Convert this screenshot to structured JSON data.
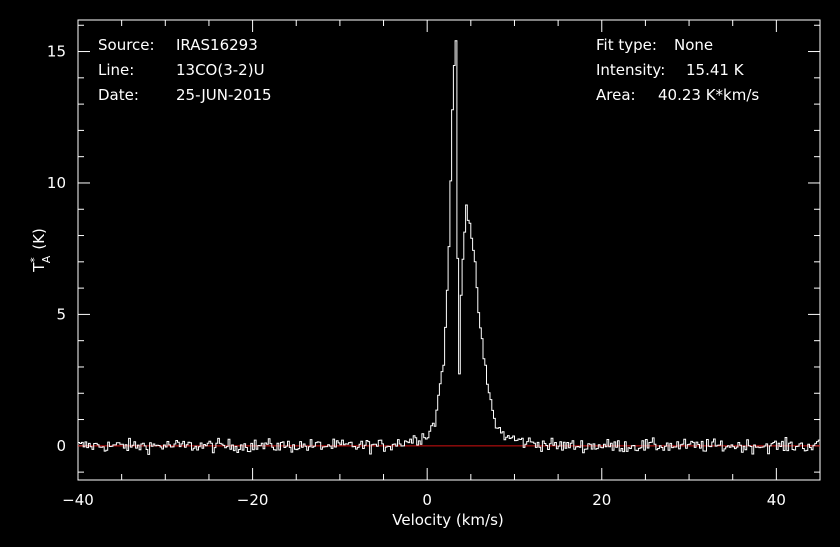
{
  "colors": {
    "background": "#000000",
    "foreground": "#ffffff",
    "baseline": "#d21010"
  },
  "header_left": {
    "source_label": "Source:",
    "source_value": "IRAS16293",
    "line_label": "Line:",
    "line_value": "13CO(3-2)U",
    "date_label": "Date:",
    "date_value": "25-JUN-2015"
  },
  "header_right": {
    "fit_label": "Fit type:",
    "fit_value": "None",
    "intensity_label": "Intensity:",
    "intensity_value": "15.41 K",
    "area_label": "Area:",
    "area_value": "40.23 K*km/s"
  },
  "chart_data": {
    "type": "line",
    "xlabel": "Velocity (km/s)",
    "ylabel": "T",
    "ylabel_sup": "*",
    "ylabel_sub": "A",
    "ylabel_unit": "(K)",
    "xlim": [
      -40,
      45
    ],
    "ylim": [
      -1.3,
      16.2
    ],
    "xticks": [
      -40,
      -20,
      0,
      20,
      40
    ],
    "xtick_labels": [
      "−40",
      "−20",
      "0",
      "20",
      "40"
    ],
    "yticks": [
      0,
      5,
      10,
      15
    ],
    "ytick_labels": [
      "0",
      "5",
      "10",
      "15"
    ],
    "baseline_y": 0,
    "noise_rms": 0.25,
    "series": [
      {
        "values_profile": {
          "x": [
            -40,
            -5,
            -2,
            0,
            1,
            1.5,
            2,
            2.5,
            3,
            3.3,
            3.5,
            3.7,
            4,
            4.5,
            5,
            5.5,
            6,
            6.5,
            7,
            7.5,
            8,
            9,
            11,
            15,
            45
          ],
          "y": [
            0,
            0,
            0.2,
            0.4,
            1.0,
            2.4,
            3.5,
            7.5,
            14.0,
            15.41,
            7.2,
            2.8,
            7.0,
            9.1,
            8.3,
            6.7,
            4.8,
            3.3,
            2.2,
            1.3,
            0.7,
            0.35,
            0.15,
            0,
            0
          ]
        }
      }
    ]
  }
}
